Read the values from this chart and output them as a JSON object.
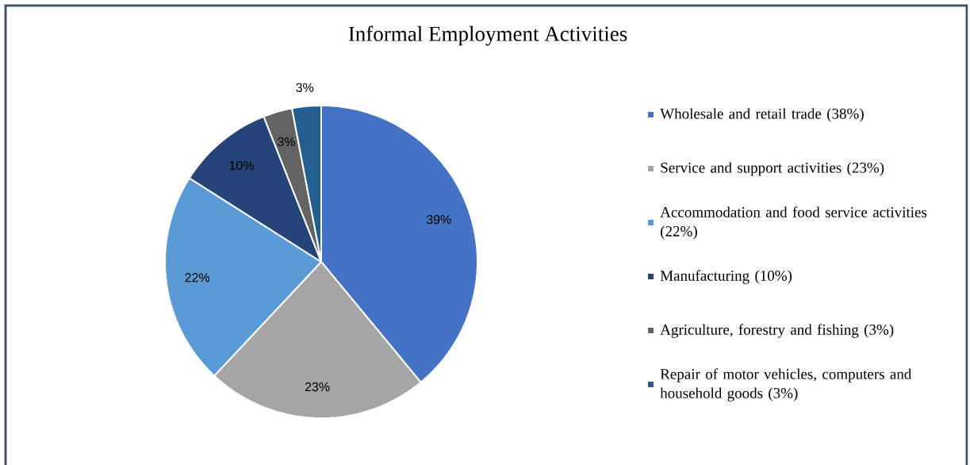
{
  "chart_data": {
    "type": "pie",
    "title": "Informal Employment Activities",
    "categories": [
      "Wholesale and retail trade (38%)",
      "Service and support activities (23%)",
      "Accommodation and food service activities (22%)",
      "Manufacturing (10%)",
      "Agriculture, forestry and fishing (3%)",
      "Repair of motor vehicles, computers and household goods (3%)"
    ],
    "values": [
      39,
      23,
      22,
      10,
      3,
      3
    ],
    "value_labels": [
      "39%",
      "23%",
      "22%",
      "10%",
      "3%",
      "3%"
    ],
    "colors": [
      "#4472c4",
      "#a5a5a5",
      "#5b9bd5",
      "#264478",
      "#636363",
      "#255e91"
    ],
    "legend": "right"
  }
}
